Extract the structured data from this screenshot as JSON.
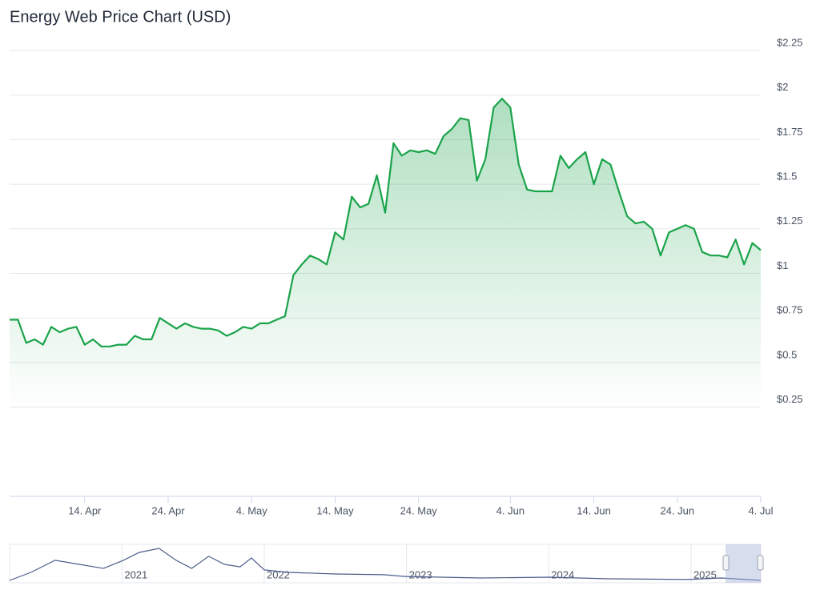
{
  "chart_data": [
    {
      "type": "area",
      "title": "Energy Web Price Chart (USD)",
      "color": "#1aa34a",
      "x": [
        95,
        96,
        97,
        98,
        99,
        100,
        101,
        102,
        103,
        104,
        105,
        106,
        107,
        108,
        109,
        110,
        111,
        112,
        113,
        114,
        115,
        116,
        117,
        118,
        119,
        120,
        121,
        122,
        123,
        124,
        125,
        126,
        127,
        128,
        129,
        130,
        131,
        132,
        133,
        134,
        135,
        136,
        137,
        138,
        139,
        140,
        141,
        142,
        143,
        144,
        145,
        146,
        147,
        148,
        149,
        150,
        151,
        152,
        153,
        154,
        155,
        156,
        157,
        158,
        159,
        160,
        161,
        162,
        163,
        164,
        165,
        166,
        167,
        168,
        169,
        170,
        171,
        172,
        173,
        174,
        175,
        176,
        177,
        178,
        179,
        180,
        181,
        182,
        183,
        184,
        185
      ],
      "values": [
        0.74,
        0.74,
        0.61,
        0.63,
        0.6,
        0.7,
        0.67,
        0.69,
        0.7,
        0.6,
        0.63,
        0.59,
        0.59,
        0.6,
        0.6,
        0.65,
        0.63,
        0.63,
        0.75,
        0.72,
        0.69,
        0.72,
        0.7,
        0.69,
        0.69,
        0.68,
        0.65,
        0.67,
        0.7,
        0.69,
        0.72,
        0.72,
        0.74,
        0.76,
        0.99,
        1.05,
        1.1,
        1.08,
        1.05,
        1.23,
        1.19,
        1.43,
        1.37,
        1.39,
        1.55,
        1.34,
        1.73,
        1.66,
        1.69,
        1.68,
        1.69,
        1.67,
        1.77,
        1.81,
        1.87,
        1.86,
        1.52,
        1.64,
        1.93,
        1.98,
        1.93,
        1.61,
        1.47,
        1.46,
        1.46,
        1.46,
        1.66,
        1.59,
        1.64,
        1.68,
        1.5,
        1.64,
        1.61,
        1.46,
        1.32,
        1.28,
        1.29,
        1.25,
        1.1,
        1.23,
        1.25,
        1.27,
        1.25,
        1.12,
        1.1,
        1.1,
        1.09,
        1.19,
        1.05,
        1.17,
        1.13
      ],
      "xlim": [
        95,
        185
      ],
      "xticks": [
        {
          "value": 104,
          "label": "14. Apr"
        },
        {
          "value": 114,
          "label": "24. Apr"
        },
        {
          "value": 124,
          "label": "4. May"
        },
        {
          "value": 134,
          "label": "14. May"
        },
        {
          "value": 144,
          "label": "24. May"
        },
        {
          "value": 155,
          "label": "4. Jun"
        },
        {
          "value": 165,
          "label": "14. Jun"
        },
        {
          "value": 175,
          "label": "24. Jun"
        },
        {
          "value": 185,
          "label": "4. Jul"
        }
      ],
      "ylim": [
        -0.25,
        2.25
      ],
      "yticks": [
        {
          "value": 0.25,
          "label": "$0.25"
        },
        {
          "value": 0.5,
          "label": "$0.5"
        },
        {
          "value": 0.75,
          "label": "$0.75"
        },
        {
          "value": 1,
          "label": "$1"
        },
        {
          "value": 1.25,
          "label": "$1.25"
        },
        {
          "value": 1.5,
          "label": "$1.5"
        },
        {
          "value": 1.75,
          "label": "$1.75"
        },
        {
          "value": 2,
          "label": "$2"
        },
        {
          "value": 2.25,
          "label": "$2.25"
        }
      ],
      "grid": true
    },
    {
      "type": "line",
      "color": "#4c5c8c",
      "x": [
        2020.21,
        2020.36,
        2020.53,
        2020.7,
        2020.87,
        2021.01,
        2021.12,
        2021.26,
        2021.38,
        2021.49,
        2021.61,
        2021.72,
        2021.83,
        2021.91,
        2022.0,
        2022.17,
        2022.5,
        2022.84,
        2022.99,
        2023.52,
        2024.0,
        2024.42,
        2024.98,
        2025.21,
        2025.49
      ],
      "values": [
        1.25,
        5.4,
        11.7,
        9.6,
        7.5,
        11.7,
        15.8,
        17.9,
        11.7,
        7.5,
        13.8,
        9.6,
        8.3,
        12.9,
        6.7,
        5.4,
        4.6,
        4.2,
        3.3,
        2.5,
        2.9,
        2.1,
        1.7,
        2.5,
        1.25
      ],
      "xlim": [
        2020.21,
        2025.49
      ],
      "xticks": [
        2021,
        2022,
        2023,
        2024,
        2025
      ],
      "ylim": [
        0,
        20
      ]
    }
  ]
}
